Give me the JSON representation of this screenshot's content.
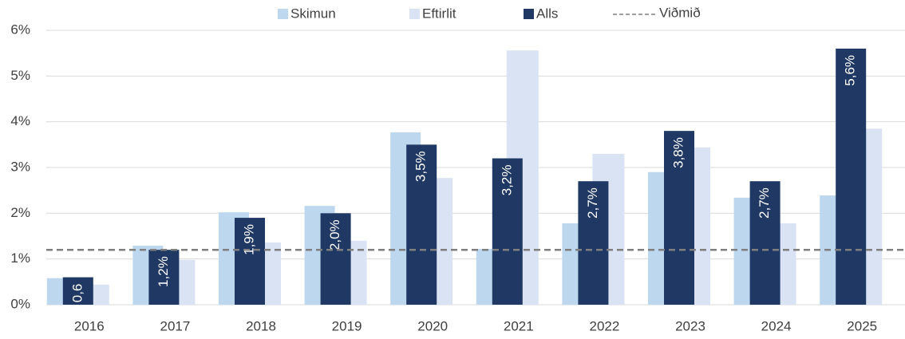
{
  "chart_data": {
    "type": "bar",
    "categories": [
      "2016",
      "2017",
      "2018",
      "2019",
      "2020",
      "2021",
      "2022",
      "2023",
      "2024",
      "2025"
    ],
    "series": [
      {
        "name": "Skimun",
        "color": "#bdd7ee",
        "values": [
          0.58,
          1.29,
          2.02,
          2.16,
          3.77,
          1.22,
          1.78,
          2.9,
          2.34,
          2.39
        ]
      },
      {
        "name": "Eftirlit",
        "color": "#dae3f3",
        "values": [
          0.44,
          0.98,
          1.36,
          1.4,
          2.77,
          5.56,
          3.3,
          3.44,
          1.78,
          3.85
        ]
      },
      {
        "name": "Alls",
        "color": "#203864",
        "values": [
          0.6,
          1.2,
          1.9,
          2.0,
          3.5,
          3.2,
          2.7,
          3.8,
          2.7,
          5.6
        ],
        "value_labels": [
          "0,6",
          "1,2%",
          "1,9%",
          "2,0%",
          "3,5%",
          "3,2%",
          "2,7%",
          "3,8%",
          "2,7%",
          "5,6%"
        ]
      }
    ],
    "reference": {
      "name": "Viðmið",
      "value": 1.2,
      "color": "#7f7f7f"
    },
    "ylim": [
      0,
      6
    ],
    "yticks": [
      {
        "value": 0,
        "label": "0%"
      },
      {
        "value": 1,
        "label": "1%"
      },
      {
        "value": 2,
        "label": "2%"
      },
      {
        "value": 3,
        "label": "3%"
      },
      {
        "value": 4,
        "label": "4%"
      },
      {
        "value": 5,
        "label": "5%"
      },
      {
        "value": 6,
        "label": "6%"
      }
    ],
    "grid": true,
    "legend": "top"
  }
}
